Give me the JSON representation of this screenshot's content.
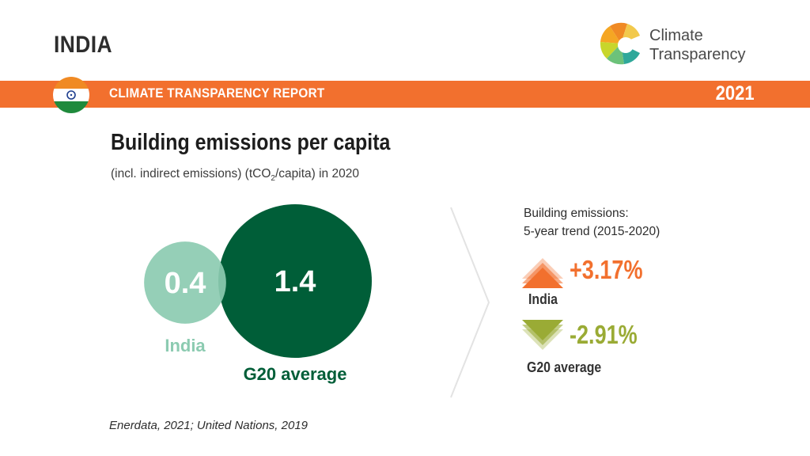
{
  "header": {
    "country": "INDIA",
    "report_title": "CLIMATE TRANSPARENCY REPORT",
    "year": "2021",
    "logo_line1": "Climate",
    "logo_line2": "Transparency",
    "colors": {
      "banner": "#f2702e"
    }
  },
  "chart_data": {
    "type": "bubble",
    "title": "Building emissions per capita",
    "subtitle_pre": "(incl. indirect emissions) (tCO",
    "subtitle_sub": "2",
    "subtitle_post": "/capita) in 2020",
    "series": [
      {
        "name": "India",
        "value": 0.4,
        "label": "0.4",
        "color": "#8ccbb1"
      },
      {
        "name": "G20 average",
        "value": 1.4,
        "label": "1.4",
        "color": "#005e38"
      }
    ]
  },
  "trend": {
    "heading_line1": "Building emissions:",
    "heading_line2": "5-year trend (2015-2020)",
    "items": [
      {
        "name": "India",
        "change": "+3.17%",
        "direction": "up",
        "color": "#f2702e"
      },
      {
        "name": "G20 average",
        "change": "-2.91%",
        "direction": "down",
        "color": "#9aab35"
      }
    ]
  },
  "source": "Enerdata, 2021; United Nations, 2019"
}
